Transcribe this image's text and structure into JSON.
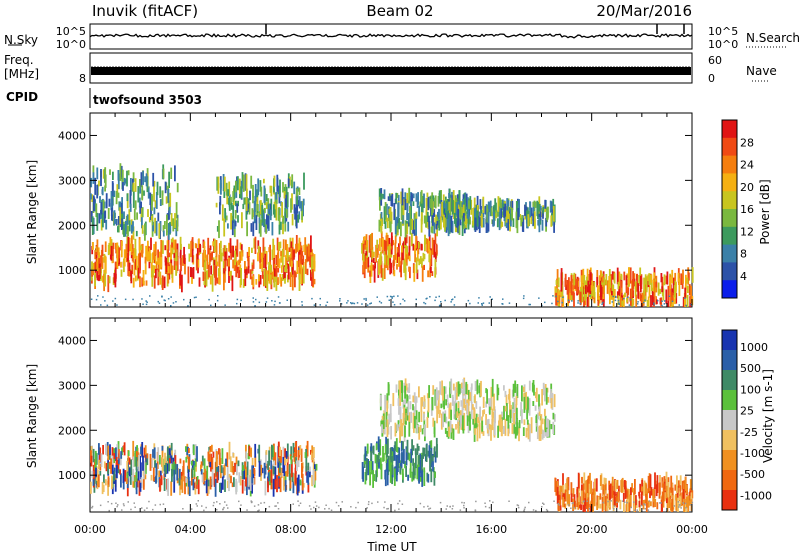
{
  "header": {
    "station": "Inuvik (fitACF)",
    "beam": "Beam 02",
    "date": "20/Mar/2016"
  },
  "strips": {
    "nsky": {
      "label": "N.Sky",
      "left_ticks": [
        "10^5",
        "10^0"
      ],
      "right_label": "N.Search",
      "right_ticks": [
        "10^5",
        "10^0"
      ]
    },
    "freq": {
      "label_line1": "Freq.",
      "label_line2": "[MHz]",
      "left_tick": "8",
      "right_label": "Nave",
      "right_ticks": [
        "60",
        "0"
      ]
    },
    "cpid": {
      "label": "CPID",
      "value": "twofsound 3503"
    }
  },
  "chart_data": [
    {
      "type": "heatmap",
      "name": "power",
      "title": "",
      "xlabel": "",
      "ylabel": "Slant Range [km]",
      "x_range_hours": [
        0,
        24
      ],
      "ylim": [
        180,
        4500
      ],
      "yticks": [
        1000,
        2000,
        3000,
        4000
      ],
      "colorbar_label": "Power [dB]",
      "colorbar_ticks": [
        4,
        8,
        12,
        16,
        20,
        24,
        28
      ],
      "colorbar_colors": [
        "#0b1eea",
        "#2c52a8",
        "#3a80a8",
        "#3c9a5e",
        "#7ab83f",
        "#c8c51f",
        "#f5b012",
        "#f57e0e",
        "#f04a14",
        "#e01414"
      ],
      "features": [
        {
          "t": [
            0.0,
            9.0
          ],
          "r": [
            700,
            1600
          ],
          "level": "high"
        },
        {
          "t": [
            0.0,
            3.5
          ],
          "r": [
            1800,
            3200
          ],
          "level": "medium"
        },
        {
          "t": [
            5.0,
            8.5
          ],
          "r": [
            1900,
            3000
          ],
          "level": "medium"
        },
        {
          "t": [
            10.8,
            13.8
          ],
          "r": [
            900,
            1700
          ],
          "level": "high"
        },
        {
          "t": [
            11.5,
            15.0
          ],
          "r": [
            1900,
            2700
          ],
          "level": "medium"
        },
        {
          "t": [
            14.0,
            18.5
          ],
          "r": [
            2000,
            2500
          ],
          "level": "medium"
        },
        {
          "t": [
            18.5,
            24.0
          ],
          "r": [
            250,
            900
          ],
          "level": "high"
        }
      ]
    },
    {
      "type": "heatmap",
      "name": "velocity",
      "title": "",
      "xlabel": "Time UT",
      "ylabel": "Slant Range [km]",
      "x_range_hours": [
        0,
        24
      ],
      "xticks": [
        "00:00",
        "04:00",
        "08:00",
        "12:00",
        "16:00",
        "20:00",
        "00:00"
      ],
      "ylim": [
        180,
        4500
      ],
      "yticks": [
        1000,
        2000,
        3000,
        4000
      ],
      "colorbar_label": "Velocity [m s-1]",
      "colorbar_ticks": [
        "1000",
        "500",
        "100",
        "25",
        "-25",
        "-100",
        "-500",
        "-1000"
      ],
      "colorbar_colors": [
        "#1834b0",
        "#2a5fa8",
        "#3f8a66",
        "#5bc03b",
        "#c8c8c8",
        "#f0c060",
        "#f09020",
        "#f06810",
        "#e83010"
      ],
      "features": [
        {
          "t": [
            0.0,
            9.0
          ],
          "r": [
            700,
            1600
          ],
          "level": "mixed"
        },
        {
          "t": [
            10.8,
            13.8
          ],
          "r": [
            900,
            1700
          ],
          "level": "toward"
        },
        {
          "t": [
            11.5,
            18.5
          ],
          "r": [
            1900,
            3000
          ],
          "level": "near-zero"
        },
        {
          "t": [
            18.5,
            24.0
          ],
          "r": [
            250,
            900
          ],
          "level": "away"
        }
      ]
    }
  ]
}
